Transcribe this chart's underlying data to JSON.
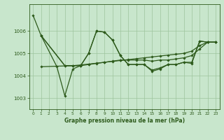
{
  "background_color": "#c8e6cc",
  "grid_color": "#9dc49d",
  "line_color": "#2d5a1b",
  "title": "Graphe pression niveau de la mer (hPa)",
  "xlim": [
    -0.5,
    23.5
  ],
  "ylim": [
    1002.5,
    1007.2
  ],
  "yticks": [
    1003,
    1004,
    1005,
    1006
  ],
  "xticks": [
    0,
    1,
    2,
    3,
    4,
    5,
    6,
    7,
    8,
    9,
    10,
    11,
    12,
    13,
    14,
    15,
    16,
    17,
    18,
    19,
    20,
    21,
    22,
    23
  ],
  "series": [
    {
      "x": [
        0,
        1,
        3,
        4,
        5,
        6,
        7,
        8,
        9,
        10,
        11,
        12,
        13,
        14,
        15,
        16,
        17,
        18,
        19,
        20,
        21,
        22,
        23
      ],
      "y": [
        1006.7,
        1005.8,
        1004.4,
        1003.1,
        1004.3,
        1004.45,
        1005.0,
        1006.0,
        1005.95,
        1005.6,
        1004.9,
        1004.5,
        1004.5,
        1004.5,
        1004.25,
        1004.35,
        1004.5,
        1004.5,
        1004.6,
        1004.55,
        1005.55,
        1005.5,
        1005.5
      ]
    },
    {
      "x": [
        1,
        4,
        5,
        6,
        7,
        8,
        9,
        10,
        11,
        12,
        13,
        14,
        15,
        16,
        17,
        18,
        19,
        20,
        21,
        22,
        23
      ],
      "y": [
        1005.8,
        1004.45,
        1004.45,
        1004.45,
        1004.5,
        1004.55,
        1004.6,
        1004.65,
        1004.7,
        1004.7,
        1004.7,
        1004.7,
        1004.65,
        1004.7,
        1004.7,
        1004.75,
        1004.8,
        1004.9,
        1005.2,
        1005.5,
        1005.5
      ]
    },
    {
      "x": [
        1,
        5,
        6,
        7,
        8,
        9,
        10,
        11,
        12,
        13,
        14,
        15,
        16,
        17,
        18,
        19,
        20,
        21,
        22,
        23
      ],
      "y": [
        1004.4,
        1004.45,
        1004.48,
        1004.52,
        1004.56,
        1004.6,
        1004.64,
        1004.68,
        1004.72,
        1004.76,
        1004.8,
        1004.84,
        1004.88,
        1004.92,
        1004.96,
        1005.0,
        1005.1,
        1005.35,
        1005.5,
        1005.5
      ]
    },
    {
      "x": [
        1,
        4,
        5,
        6,
        7,
        8,
        9,
        10,
        11,
        12,
        13,
        14,
        15,
        16,
        17,
        18,
        19,
        20,
        21,
        22,
        23
      ],
      "y": [
        1005.8,
        1004.45,
        1004.45,
        1004.45,
        1005.0,
        1006.0,
        1005.95,
        1005.6,
        1004.9,
        1004.5,
        1004.5,
        1004.5,
        1004.2,
        1004.3,
        1004.5,
        1004.5,
        1004.6,
        1004.6,
        1005.55,
        1005.5,
        1005.5
      ]
    }
  ]
}
